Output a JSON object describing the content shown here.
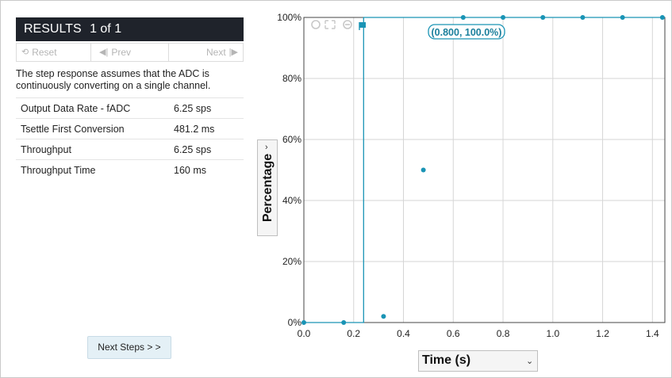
{
  "results": {
    "title": "RESULTS",
    "page_indicator": "1 of 1",
    "reset_label": "Reset",
    "prev_label": "Prev",
    "next_label": "Next",
    "note": "The step response assumes that the ADC is continuously converting on a single channel.",
    "rows": [
      {
        "label": "Output Data Rate - fADC",
        "value": "6.25 sps"
      },
      {
        "label": "Tsettle First Conversion",
        "value": "481.2 ms"
      },
      {
        "label": "Throughput",
        "value": "6.25 sps"
      },
      {
        "label": "Throughput Time",
        "value": "160 ms"
      }
    ],
    "next_steps_label": "Next Steps > >"
  },
  "colors": {
    "accent": "#1a94b5",
    "header_bg": "#1f232b"
  },
  "chart_data": {
    "type": "scatter",
    "xlabel": "Time (s)",
    "ylabel": "Percentage",
    "xlim": [
      0.0,
      1.45
    ],
    "ylim": [
      0,
      100
    ],
    "x_ticks": [
      "0.0",
      "0.2",
      "0.4",
      "0.6",
      "0.8",
      "1.0",
      "1.2",
      "1.4"
    ],
    "y_ticks": [
      "0%",
      "20%",
      "40%",
      "60%",
      "80%",
      "100%"
    ],
    "grid": true,
    "series": [
      {
        "points": [
          {
            "x": 0.0,
            "y": 0
          },
          {
            "x": 0.16,
            "y": 0
          },
          {
            "x": 0.32,
            "y": 2
          },
          {
            "x": 0.48,
            "y": 50
          },
          {
            "x": 0.64,
            "y": 100
          },
          {
            "x": 0.8,
            "y": 100
          },
          {
            "x": 0.96,
            "y": 100
          },
          {
            "x": 1.12,
            "y": 100
          },
          {
            "x": 1.28,
            "y": 100
          },
          {
            "x": 1.44,
            "y": 100
          }
        ]
      }
    ],
    "step_input": [
      {
        "x": 0.0,
        "y": 0
      },
      {
        "x": 0.24,
        "y": 0
      },
      {
        "x": 0.24,
        "y": 100
      },
      {
        "x": 1.45,
        "y": 100
      }
    ],
    "annotation": {
      "text": "(0.800, 100.0%)",
      "x": 0.8,
      "y": 100
    }
  }
}
